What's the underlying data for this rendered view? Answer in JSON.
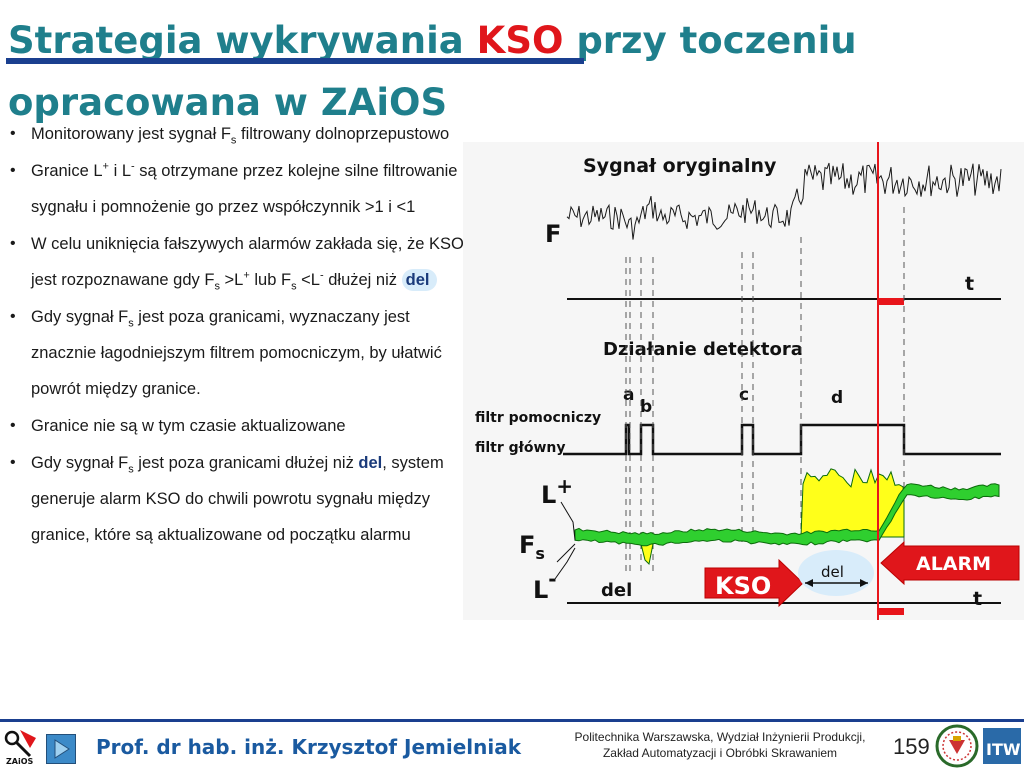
{
  "title": {
    "part1": "Strategia wykrywania ",
    "accent": "KSO",
    "part2": " przy toczeniu opracowana w ZAiOS"
  },
  "bullets": {
    "b1": {
      "pre": "Monitorowany jest sygnał F",
      "sub": "s",
      "post": " filtrowany dolnoprzepustowo"
    },
    "b2": {
      "pre": "Granice L",
      "sup1": "+",
      "mid": " i L",
      "sup2": "-",
      "post": " są otrzymane przez kolejne silne filtrowanie sygnału i pomnożenie go przez współczynnik >1 i <1"
    },
    "b3": {
      "pre": "W celu uniknięcia fałszywych alarmów zakłada się, że KSO jest rozpoznawane gdy F",
      "sub1": "s",
      "mid1": " >L",
      "sup1": "+",
      "mid2": " lub F",
      "sub2": "s",
      "mid3": " <L",
      "sup2": "-",
      "mid4": " dłużej niż ",
      "bold": "del"
    },
    "b4": {
      "pre": "Gdy sygnał F",
      "sub": "s",
      "post": " jest poza granicami, wyznaczany jest znacznie łagodniejszym filtrem pomocniczym, by ułatwić powrót między granice."
    },
    "b5": {
      "text": "Granice nie są w tym czasie aktualizowane"
    },
    "b6": {
      "pre": "Gdy sygnał F",
      "sub": "s",
      "mid": " jest poza granicami dłużej niż ",
      "bold": "del",
      "post": ", system generuje alarm KSO do chwili powrotu sygnału między granice, które są aktualizowane od początku alarmu"
    }
  },
  "diagram": {
    "signal_title": "Sygnał oryginalny",
    "signal_label": "F",
    "time_label_top": "t",
    "detector_title": "Działanie detektora",
    "event_a": "a",
    "event_b": "b",
    "event_c": "c",
    "event_d": "d",
    "aux_filter_label": "filtr pomocniczy",
    "main_filter_label": "filtr główny",
    "limit_upper": "L",
    "limit_upper_sup": "+",
    "fs_label": "F",
    "fs_sub": "s",
    "limit_lower": "L",
    "limit_lower_sup": "-",
    "del_label_left": "del",
    "kso_label": "KSO",
    "del_label_bubble": "del",
    "alarm_label": "ALARM",
    "time_label_bottom": "t",
    "colors": {
      "signal": "#1a1a1a",
      "band": "#2fcf2f",
      "band_edge": "#0b6b0b",
      "exceed_fill": "#ffff1a",
      "alarm_line": "#e8151b",
      "arrow_red": "#e0161b",
      "bubble": "#d8ecfa"
    }
  },
  "footer": {
    "author": "Prof. dr hab. inż. Krzysztof Jemielniak",
    "institution_line1": "Politechnika Warszawska, Wydział Inżynierii Produkcji,",
    "institution_line2": "Zakład Automatyzacji i Obróbki Skrawaniem",
    "page_number": "159",
    "logo_left_text": "ZAiOS",
    "logo_right_text": "ITW"
  }
}
